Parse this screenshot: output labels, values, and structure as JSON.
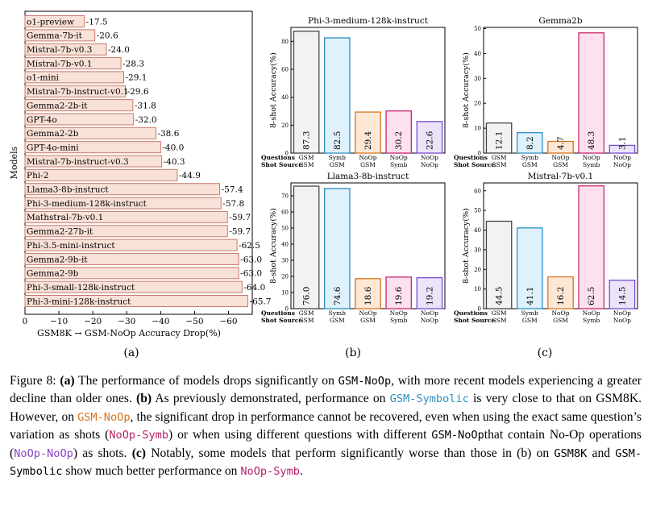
{
  "panels": {
    "a": "(a)",
    "b": "(b)",
    "c": "(c)"
  },
  "chart_data": [
    {
      "id": "a",
      "type": "bar",
      "orientation": "horizontal",
      "title": "",
      "xlabel": "GSM8K → GSM-NoOp Accuracy Drop(%)",
      "ylabel": "Models",
      "xlim": [
        0,
        -67
      ],
      "xticks": [
        "0",
        "−10",
        "−20",
        "−30",
        "−40",
        "−50",
        "−60"
      ],
      "tick_values": [
        0,
        -10,
        -20,
        -30,
        -40,
        -50,
        -60
      ],
      "categories": [
        "o1-preview",
        "Gemma-7b-it",
        "Mistral-7b-v0.3",
        "Mistral-7b-v0.1",
        "o1-mini",
        "Mistral-7b-instruct-v0.1",
        "Gemma2-2b-it",
        "GPT-4o",
        "Gemma2-2b",
        "GPT-4o-mini",
        "Mistral-7b-instruct-v0.3",
        "Phi-2",
        "Llama3-8b-instruct",
        "Phi-3-medium-128k-instruct",
        "Mathstral-7b-v0.1",
        "Gemma2-27b-it",
        "Phi-3.5-mini-instruct",
        "Gemma2-9b-it",
        "Gemma2-9b",
        "Phi-3-small-128k-instruct",
        "Phi-3-mini-128k-instruct"
      ],
      "values": [
        -17.5,
        -20.6,
        -24.0,
        -28.3,
        -29.1,
        -29.6,
        -31.8,
        -32.0,
        -38.6,
        -40.0,
        -40.3,
        -44.9,
        -57.4,
        -57.8,
        -59.7,
        -59.7,
        -62.5,
        -63.0,
        -63.0,
        -64.0,
        -65.7
      ],
      "value_labels": [
        "-17.5",
        "-20.6",
        "-24.0",
        "-28.3",
        "-29.1",
        "-29.6",
        "-31.8",
        "-32.0",
        "-38.6",
        "-40.0",
        "-40.3",
        "-44.9",
        "-57.4",
        "-57.8",
        "-59.7",
        "-59.7",
        "-62.5",
        "-63.0",
        "-63.0",
        "-64.0",
        "-65.7"
      ],
      "bar_color": "#f8e1d6",
      "edge_color": "#c87a6e"
    },
    {
      "id": "b1",
      "type": "bar",
      "title": "Phi-3-medium-128k-instruct",
      "ylabel": "8-shot Accuracy(%)",
      "ylim": [
        0,
        90
      ],
      "yticks": [
        0,
        20,
        40,
        60,
        80
      ],
      "questions": [
        "GSM",
        "Symb",
        "NoOp",
        "NoOp",
        "NoOp"
      ],
      "shots": [
        "GSM",
        "GSM",
        "GSM",
        "Symb",
        "NoOp"
      ],
      "values": [
        87.3,
        82.5,
        29.4,
        30.2,
        22.6
      ],
      "value_labels": [
        "87.3",
        "82.5",
        "29.4",
        "30.2",
        "22.6"
      ]
    },
    {
      "id": "b2",
      "type": "bar",
      "title": "Llama3-8b-instruct",
      "ylabel": "8-shot Accuracy(%)",
      "ylim": [
        0,
        78
      ],
      "yticks": [
        0,
        10,
        20,
        30,
        40,
        50,
        60,
        70
      ],
      "questions": [
        "GSM",
        "Symb",
        "NoOp",
        "NoOp",
        "NoOp"
      ],
      "shots": [
        "GSM",
        "GSM",
        "GSM",
        "Symb",
        "NoOp"
      ],
      "values": [
        76.0,
        74.6,
        18.6,
        19.6,
        19.2
      ],
      "value_labels": [
        "76.0",
        "74.6",
        "18.6",
        "19.6",
        "19.2"
      ]
    },
    {
      "id": "c1",
      "type": "bar",
      "title": "Gemma2b",
      "ylabel": "8-shot Accuracy(%)",
      "ylim": [
        0,
        50.5
      ],
      "yticks": [
        0,
        10,
        20,
        30,
        40,
        50
      ],
      "questions": [
        "GSM",
        "Symb",
        "NoOp",
        "NoOp",
        "NoOp"
      ],
      "shots": [
        "GSM",
        "GSM",
        "GSM",
        "Symb",
        "NoOp"
      ],
      "values": [
        12.1,
        8.2,
        4.7,
        48.3,
        3.1
      ],
      "value_labels": [
        "12.1",
        "8.2",
        "4.7",
        "48.3",
        "3.1"
      ]
    },
    {
      "id": "c2",
      "type": "bar",
      "title": "Mistral-7b-v0.1",
      "ylabel": "8-shot Accuracy(%)",
      "ylim": [
        0,
        64
      ],
      "yticks": [
        0,
        10,
        20,
        30,
        40,
        50,
        60
      ],
      "questions": [
        "GSM",
        "Symb",
        "NoOp",
        "NoOp",
        "NoOp"
      ],
      "shots": [
        "GSM",
        "GSM",
        "GSM",
        "Symb",
        "NoOp"
      ],
      "values": [
        44.5,
        41.1,
        16.2,
        62.5,
        14.5
      ],
      "value_labels": [
        "44.5",
        "41.1",
        "16.2",
        "62.5",
        "14.5"
      ]
    }
  ],
  "row_labels": {
    "questions": "Questions",
    "shots": "Shot Source"
  },
  "bar_styles": [
    {
      "fill": "#f2f2f2",
      "edge": "#444444"
    },
    {
      "fill": "#dff1fb",
      "edge": "#2f8fc4"
    },
    {
      "fill": "#fde8d6",
      "edge": "#d8741c"
    },
    {
      "fill": "#fde1ef",
      "edge": "#c8246e"
    },
    {
      "fill": "#ece3fb",
      "edge": "#7a4bd0"
    }
  ],
  "caption": {
    "fig": "Figure 8: ",
    "a_lbl": "(a)",
    "t1": " The performance of models drops significantly on ",
    "m1": "GSM-NoOp",
    "t2": ", with more recent models experiencing a greater decline than older ones. ",
    "b_lbl": "(b)",
    "t3": " As previously demonstrated, performance on ",
    "m2": "GSM-Symbolic",
    "t4": " is very close to that on GSM8K. However, on ",
    "m3": "GSM-NoOp",
    "t5": ", the significant drop in performance cannot be recovered, even when using the exact same question’s variation as shots (",
    "m4": "NoOp-Symb",
    "t6": ") or when using different questions with different ",
    "m5": "GSM-NoOp",
    "t7": "that contain No-Op operations (",
    "m6": "NoOp-NoOp",
    "t8": ") as shots. ",
    "c_lbl": "(c)",
    "t9": " Notably, some models that perform significantly worse than those in (b) on ",
    "m7": "GSM8K",
    "t10": " and ",
    "m8": "GSM-Symbolic",
    "t11": "  show much better performance on ",
    "m9": "NoOp-Symb",
    "t12": "."
  }
}
